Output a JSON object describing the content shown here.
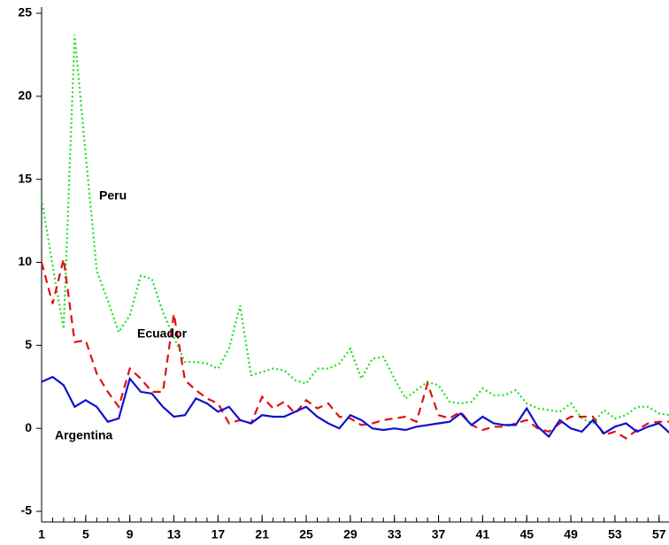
{
  "chart_data": {
    "type": "line",
    "x": [
      1,
      2,
      3,
      4,
      5,
      6,
      7,
      8,
      9,
      10,
      11,
      12,
      13,
      14,
      15,
      16,
      17,
      18,
      19,
      20,
      21,
      22,
      23,
      24,
      25,
      26,
      27,
      28,
      29,
      30,
      31,
      32,
      33,
      34,
      35,
      36,
      37,
      38,
      39,
      40,
      41,
      42,
      43,
      44,
      45,
      46,
      47,
      48,
      49,
      50,
      51,
      52,
      53,
      54,
      55,
      56,
      57,
      58
    ],
    "series": [
      {
        "name": "Peru",
        "color": "#22e022",
        "dash": "dotted",
        "values": [
          13.8,
          9.8,
          6.0,
          23.7,
          16.5,
          9.5,
          7.7,
          5.8,
          6.8,
          9.2,
          9.0,
          7.0,
          5.5,
          4.0,
          4.0,
          3.9,
          3.6,
          4.8,
          7.4,
          3.2,
          3.4,
          3.6,
          3.5,
          2.9,
          2.7,
          3.6,
          3.6,
          3.9,
          4.8,
          3.0,
          4.2,
          4.3,
          3.0,
          1.8,
          2.3,
          2.8,
          2.6,
          1.6,
          1.5,
          1.6,
          2.4,
          2.0,
          2.0,
          2.3,
          1.5,
          1.2,
          1.1,
          1.0,
          1.5,
          0.6,
          0.3,
          1.1,
          0.6,
          0.8,
          1.3,
          1.3,
          0.9,
          0.8
        ]
      },
      {
        "name": "Ecuador",
        "color": "#e01010",
        "dash": "dashed",
        "values": [
          10.0,
          7.5,
          10.2,
          5.2,
          5.3,
          3.3,
          2.2,
          1.3,
          3.6,
          3.0,
          2.2,
          2.2,
          6.9,
          2.9,
          2.3,
          1.8,
          1.5,
          0.3,
          0.5,
          0.3,
          1.9,
          1.2,
          1.6,
          0.9,
          1.7,
          1.2,
          1.5,
          0.7,
          0.6,
          0.2,
          0.3,
          0.5,
          0.6,
          0.7,
          0.4,
          2.7,
          0.8,
          0.6,
          1.0,
          0.2,
          -0.1,
          0.1,
          0.1,
          0.3,
          0.5,
          0.0,
          -0.2,
          0.3,
          0.7,
          0.7,
          0.7,
          -0.4,
          -0.2,
          -0.6,
          -0.1,
          0.3,
          0.4,
          0.4
        ]
      },
      {
        "name": "Argentina",
        "color": "#1010d0",
        "dash": "solid",
        "values": [
          2.8,
          3.1,
          2.6,
          1.3,
          1.7,
          1.3,
          0.4,
          0.6,
          3.0,
          2.2,
          2.1,
          1.3,
          0.7,
          0.8,
          1.8,
          1.5,
          1.0,
          1.3,
          0.5,
          0.3,
          0.8,
          0.7,
          0.7,
          1.0,
          1.3,
          0.7,
          0.3,
          0.0,
          0.8,
          0.5,
          0.0,
          -0.1,
          0.0,
          -0.1,
          0.1,
          0.2,
          0.3,
          0.4,
          0.9,
          0.2,
          0.7,
          0.3,
          0.2,
          0.2,
          1.2,
          0.1,
          -0.5,
          0.5,
          0.0,
          -0.2,
          0.5,
          -0.3,
          0.1,
          0.3,
          -0.2,
          0.1,
          0.3,
          -0.3
        ]
      }
    ],
    "xlim": [
      1,
      58
    ],
    "xticks": [
      1,
      5,
      9,
      13,
      17,
      21,
      25,
      29,
      33,
      37,
      41,
      45,
      49,
      53,
      57
    ],
    "ylim": [
      -5,
      25
    ],
    "yticks": [
      -5,
      0,
      5,
      10,
      15,
      20,
      25
    ]
  }
}
